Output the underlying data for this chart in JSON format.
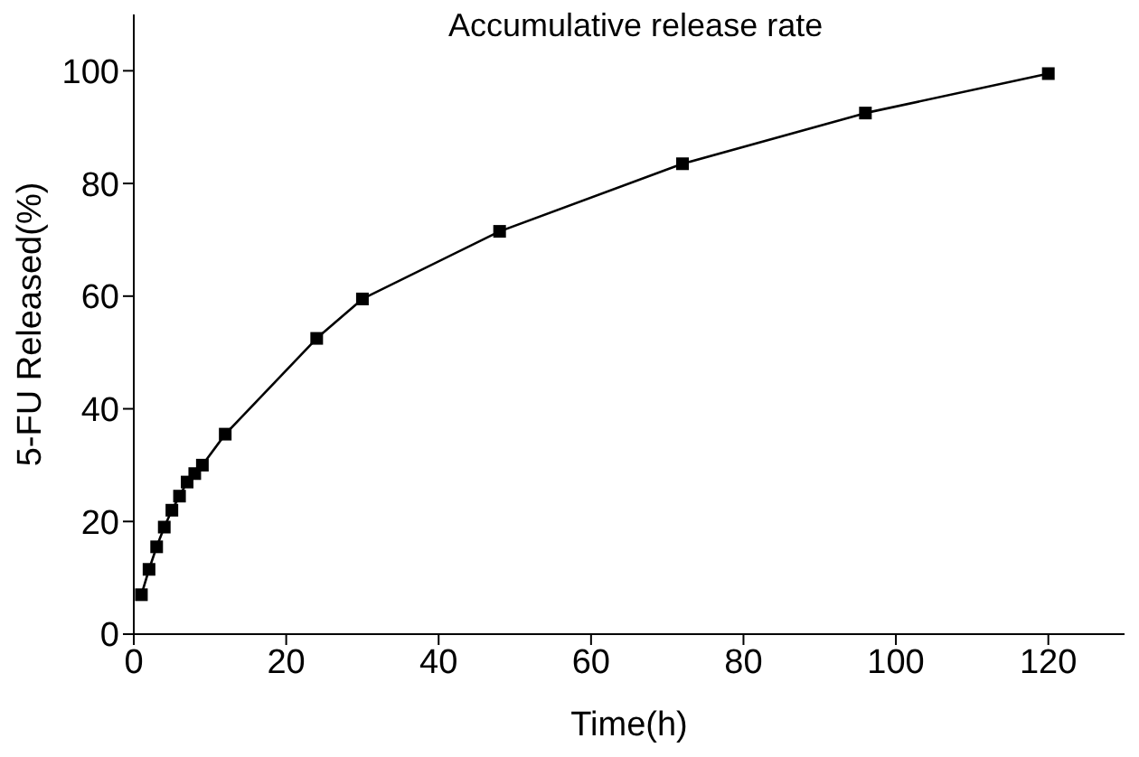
{
  "chart_data": {
    "type": "line",
    "title": "Accumulative release rate",
    "xlabel": "Time(h)",
    "ylabel": "5-FU Released(%)",
    "x": [
      1,
      2,
      3,
      4,
      5,
      6,
      7,
      8,
      9,
      12,
      24,
      30,
      48,
      72,
      96,
      120
    ],
    "series": [
      {
        "color": "#000000",
        "values": [
          7,
          11.5,
          15.5,
          19,
          22,
          24.5,
          27,
          28.5,
          30,
          35.5,
          52.5,
          59.5,
          71.5,
          83.5,
          92.5,
          99.5
        ]
      }
    ],
    "xlim": [
      0,
      130
    ],
    "xticks": [
      0,
      20,
      40,
      60,
      80,
      100,
      120
    ],
    "ylim": [
      0,
      110
    ],
    "yticks": [
      0,
      20,
      40,
      60,
      80,
      100
    ],
    "grid": false,
    "legend": false,
    "marker": "square",
    "line_style": "solid"
  }
}
